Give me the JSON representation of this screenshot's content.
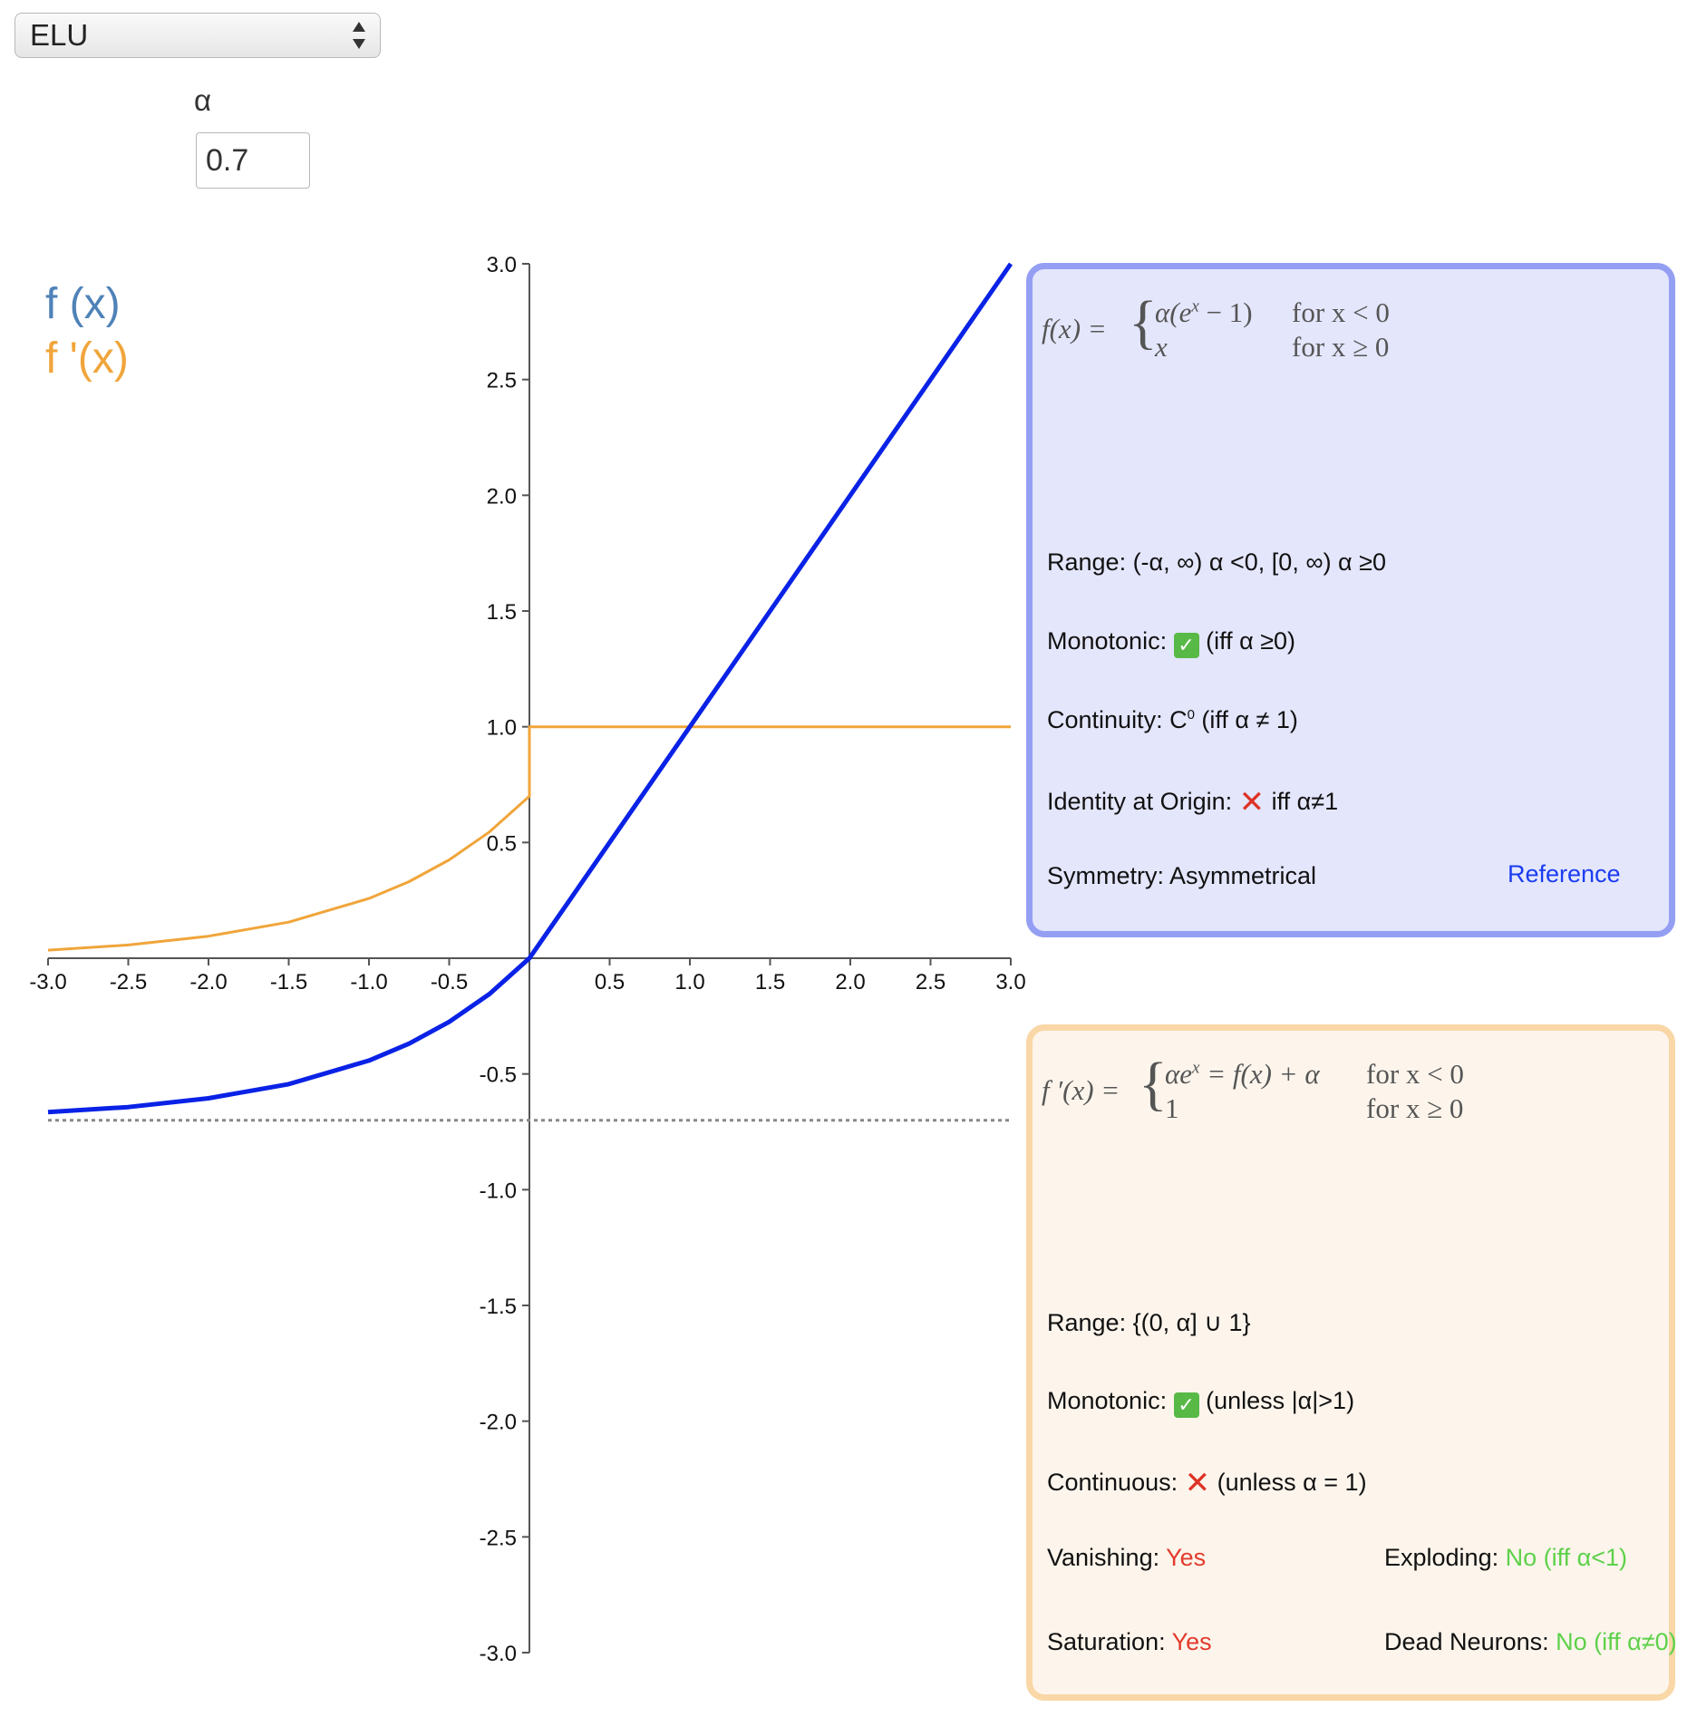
{
  "activation_select": {
    "value": "ELU"
  },
  "param": {
    "label": "α",
    "value": "0.7"
  },
  "legend": {
    "fx": "f (x)",
    "dfx": "f '(x)"
  },
  "colors": {
    "fx": "#0a22e6",
    "dfx": "#f0a53a",
    "asymptote": "#888888",
    "axis": "#555555"
  },
  "chart_data": {
    "type": "line",
    "xlim": [
      -3.0,
      3.0
    ],
    "ylim": [
      -3.0,
      3.0
    ],
    "x_ticks": [
      "-3.0",
      "-2.5",
      "-2.0",
      "-1.5",
      "-1.0",
      "-0.5",
      "0.5",
      "1.0",
      "1.5",
      "2.0",
      "2.5",
      "3.0"
    ],
    "y_ticks": [
      "3.0",
      "2.5",
      "2.0",
      "1.5",
      "1.0",
      "0.5",
      "-0.5",
      "-1.0",
      "-1.5",
      "-2.0",
      "-2.5",
      "-3.0"
    ],
    "grid": false,
    "alpha": 0.7,
    "series": [
      {
        "name": "f (x)",
        "color": "#0a22e6",
        "x": [
          -3.0,
          -2.5,
          -2.0,
          -1.5,
          -1.0,
          -0.75,
          -0.5,
          -0.25,
          0.0,
          0.5,
          1.0,
          1.5,
          2.0,
          2.5,
          3.0
        ],
        "y": [
          -0.665,
          -0.643,
          -0.605,
          -0.544,
          -0.442,
          -0.369,
          -0.275,
          -0.155,
          0.0,
          0.5,
          1.0,
          1.5,
          2.0,
          2.5,
          3.0
        ]
      },
      {
        "name": "f '(x)",
        "color": "#f0a53a",
        "x": [
          -3.0,
          -2.5,
          -2.0,
          -1.5,
          -1.0,
          -0.75,
          -0.5,
          -0.25,
          0.0,
          0.0,
          3.0
        ],
        "y": [
          0.035,
          0.057,
          0.095,
          0.156,
          0.258,
          0.331,
          0.425,
          0.545,
          0.7,
          1.0,
          1.0
        ]
      }
    ],
    "asymptote_y": -0.7
  },
  "f_box": {
    "lhs": "f(x) =",
    "case1_expr": "α(e",
    "case1_sup": "x",
    "case1_tail": " − 1)",
    "case1_cond": "for x < 0",
    "case2_expr": "x",
    "case2_cond": "for x ≥ 0",
    "range": "Range: (-α, ∞) α <0, [0, ∞) α ≥0",
    "monotonic_label": "Monotonic:",
    "monotonic_note": "(iff α ≥0)",
    "continuity": "Continuity: C",
    "continuity_sup": "0",
    "continuity_note": " (iff α ≠ 1)",
    "identity_label": "Identity at Origin:",
    "identity_note": "iff α≠1",
    "symmetry": "Symmetry: Asymmetrical",
    "reference": "Reference"
  },
  "df_box": {
    "lhs": "f ′(x) =",
    "case1_expr_a": "αe",
    "case1_sup": "x",
    "case1_expr_b": " = f(x) + α",
    "case1_cond": "for x < 0",
    "case2_expr": "1",
    "case2_cond": "for x ≥ 0",
    "range": "Range: {(0, α] ∪ 1}",
    "monotonic_label": "Monotonic:",
    "monotonic_note": "(unless |α|>1)",
    "continuous_label": "Continuous:",
    "continuous_note": "(unless α = 1)",
    "vanishing_label": "Vanishing:",
    "vanishing_value": "Yes",
    "exploding_label": "Exploding:",
    "exploding_value": "No (iff α<1)",
    "saturation_label": "Saturation:",
    "saturation_value": "Yes",
    "dead_label": "Dead Neurons:",
    "dead_value": "No (iff α≠0)"
  }
}
